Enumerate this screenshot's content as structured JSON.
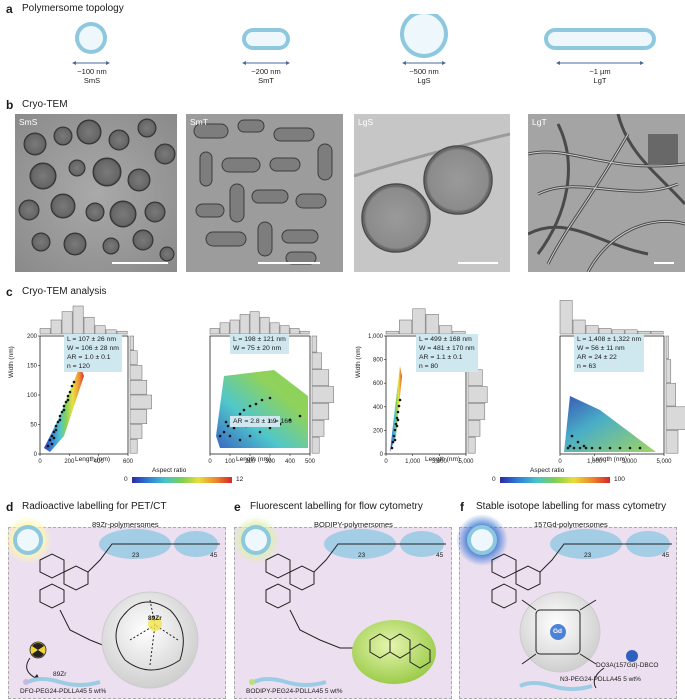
{
  "panel_a": {
    "letter": "a",
    "title": "Polymersome topology",
    "items": [
      {
        "size": "~100 nm",
        "code": "SmS"
      },
      {
        "size": "~200 nm",
        "code": "SmT"
      },
      {
        "size": "~500 nm",
        "code": "LgS"
      },
      {
        "size": "~1 µm",
        "code": "LgT"
      }
    ]
  },
  "panel_b": {
    "letter": "b",
    "title": "Cryo-TEM",
    "images": [
      {
        "label": "SmS"
      },
      {
        "label": "SmT"
      },
      {
        "label": "LgS"
      },
      {
        "label": "LgT"
      }
    ]
  },
  "panel_c": {
    "letter": "c",
    "title": "Cryo-TEM analysis",
    "aspect_ratio_label": "Aspect ratio",
    "colorbar_left": {
      "min": "0",
      "max": "12"
    },
    "colorbar_right": {
      "min": "0",
      "max": "100"
    }
  },
  "chart_data": [
    {
      "type": "scatter",
      "name": "SmS",
      "xlabel": "Length (nm)",
      "ylabel": "Width (nm)",
      "xlim": [
        0,
        600
      ],
      "ylim": [
        0,
        200
      ],
      "xticks": [
        "0",
        "200",
        "400",
        "600"
      ],
      "yticks": [
        "0",
        "50",
        "100",
        "150",
        "200"
      ],
      "stats": [
        "L = 107 ± 26 nm",
        "W = 106 ± 28 nm",
        "AR = 1.0 ± 0.1",
        "n = 120"
      ]
    },
    {
      "type": "scatter",
      "name": "SmT",
      "xlabel": "Length (nm)",
      "ylabel": "",
      "xlim": [
        0,
        500
      ],
      "ylim": [
        0,
        200
      ],
      "xticks": [
        "0",
        "100",
        "200",
        "300",
        "400",
        "500"
      ],
      "stats": [
        "L = 198 ± 121 nm",
        "W = 75 ± 20 nm"
      ],
      "stats2": [
        "AR = 2.8 ± 1.9",
        "n = 166"
      ]
    },
    {
      "type": "scatter",
      "name": "LgS",
      "xlabel": "Length (nm)",
      "ylabel": "Width (nm)",
      "xlim": [
        0,
        5000
      ],
      "ylim": [
        0,
        1000
      ],
      "xticks": [
        "0",
        "1,000",
        "3,000",
        "5,000"
      ],
      "yticks": [
        "0",
        "200",
        "400",
        "600",
        "800",
        "1,000"
      ],
      "stats": [
        "L = 499 ± 168 nm",
        "W = 481 ± 170 nm",
        "AR = 1.1 ± 0.1",
        "n = 80"
      ]
    },
    {
      "type": "scatter",
      "name": "LgT",
      "xlabel": "Length (nm)",
      "ylabel": "",
      "xlim": [
        0,
        5000
      ],
      "ylim": [
        0,
        1000
      ],
      "xticks": [
        "0",
        "1,000",
        "3,000",
        "5,000"
      ],
      "stats": [
        "L = 1,408 ± 1,322 nm",
        "W = 56 ± 11 nm",
        "AR = 24 ± 22",
        "n = 63"
      ]
    }
  ],
  "panel_d": {
    "letter": "d",
    "title": "Radioactive labelling for PET/CT",
    "subtitle": "89Zr-polymersomes",
    "isotope": "89Zr",
    "reagent": "DFO-PEG24-PDLLA45 5 wt%",
    "metal": "89Zr"
  },
  "panel_e": {
    "letter": "e",
    "title": "Fluorescent labelling for flow cytometry",
    "subtitle": "BODIPY-polymersomes",
    "reagent": "BODIPY-PEG24-PDLLA45 5 wt%"
  },
  "panel_f": {
    "letter": "f",
    "title": "Stable isotope labelling for mass cytometry",
    "subtitle": "157Gd-polymersomes",
    "dbco": "DO3A(157Gd)-DBCO",
    "reagent": "N3-PEG24-PDLLA45 5 wt%",
    "metal": "Gd"
  },
  "chem": {
    "peg_n": "23",
    "pdlla_n": "45"
  }
}
